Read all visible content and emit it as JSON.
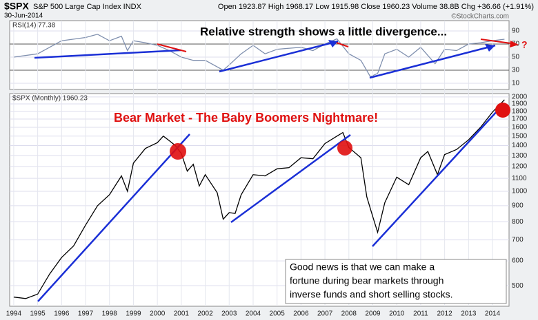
{
  "header": {
    "symbol": "$SPX",
    "name": "S&P 500 Large Cap Index INDX",
    "date": "30-Jun-2014",
    "quote": "Open 1923.87  High 1968.17  Low 1915.98  Close 1960.23  Volume 38.8B  Chg +36.66 (+1.91%)",
    "credit": "©StockCharts.com"
  },
  "chart_data": [
    {
      "type": "line",
      "legend_label": "RSI(14) 77.38",
      "annotation": "Relative strength shows a little divergence...",
      "question": "?",
      "color": "#7f8fae",
      "xlim": [
        1993.83,
        2014.69
      ],
      "ylim": [
        0.5,
        105.8
      ],
      "yticks": [
        10,
        30,
        50,
        70,
        90
      ],
      "ref_lines": [
        30,
        70
      ],
      "x": [
        1994,
        1995,
        1996,
        1997,
        1997.5,
        1998,
        1998.5,
        1998.75,
        1999,
        1999.5,
        2000,
        2000.5,
        2001,
        2001.5,
        2002,
        2002.75,
        2003,
        2003.5,
        2004,
        2004.5,
        2005,
        2006,
        2006.5,
        2007,
        2007.5,
        2008,
        2008.5,
        2008.9,
        2009.2,
        2009.5,
        2010,
        2010.5,
        2011,
        2011.6,
        2012,
        2012.5,
        2013,
        2013.5,
        2014,
        2014.5
      ],
      "values": [
        50,
        55,
        75,
        80,
        85,
        75,
        82,
        60,
        75,
        72,
        68,
        60,
        50,
        45,
        45,
        30,
        38,
        55,
        68,
        55,
        62,
        65,
        60,
        70,
        78,
        55,
        45,
        20,
        25,
        55,
        62,
        50,
        65,
        40,
        62,
        60,
        70,
        72,
        75,
        77.38
      ]
    },
    {
      "type": "line",
      "legend_label": "$SPX (Monthly) 1960.23",
      "annotation": "Bear Market - The Baby Boomers Nightmare!",
      "note_lines": [
        "Good news is that we can make a",
        "fortune during bear markets through",
        "inverse funds and short selling stocks."
      ],
      "color": "#000000",
      "log_scale": true,
      "xlim": [
        1993.83,
        2014.69
      ],
      "xticks": [
        1994,
        1995,
        1996,
        1997,
        1998,
        1999,
        2000,
        2001,
        2002,
        2003,
        2004,
        2005,
        2006,
        2007,
        2008,
        2009,
        2010,
        2011,
        2012,
        2013,
        2014
      ],
      "ylim": [
        430,
        2050
      ],
      "yticks": [
        500,
        600,
        700,
        800,
        900,
        1000,
        1100,
        1200,
        1300,
        1400,
        1500,
        1600,
        1700,
        1800,
        1900,
        2000
      ],
      "x": [
        1994,
        1994.5,
        1995,
        1995.5,
        1996,
        1996.5,
        1997,
        1997.5,
        1998,
        1998.5,
        1998.75,
        1999,
        1999.5,
        2000,
        2000.25,
        2000.5,
        2000.75,
        2001,
        2001.25,
        2001.5,
        2001.75,
        2002,
        2002.5,
        2002.75,
        2003,
        2003.25,
        2003.5,
        2004,
        2004.5,
        2005,
        2005.5,
        2006,
        2006.5,
        2007,
        2007.5,
        2007.75,
        2008,
        2008.5,
        2008.75,
        2009,
        2009.2,
        2009.5,
        2010,
        2010.5,
        2011,
        2011.3,
        2011.7,
        2012,
        2012.5,
        2013,
        2013.5,
        2014,
        2014.5
      ],
      "values": [
        460,
        455,
        470,
        545,
        615,
        670,
        780,
        900,
        975,
        1120,
        1000,
        1230,
        1370,
        1430,
        1500,
        1450,
        1400,
        1320,
        1160,
        1220,
        1040,
        1130,
        990,
        815,
        855,
        850,
        975,
        1130,
        1120,
        1180,
        1190,
        1280,
        1270,
        1420,
        1500,
        1540,
        1380,
        1280,
        960,
        830,
        740,
        920,
        1110,
        1050,
        1280,
        1340,
        1130,
        1310,
        1360,
        1460,
        1600,
        1790,
        1960
      ]
    }
  ]
}
